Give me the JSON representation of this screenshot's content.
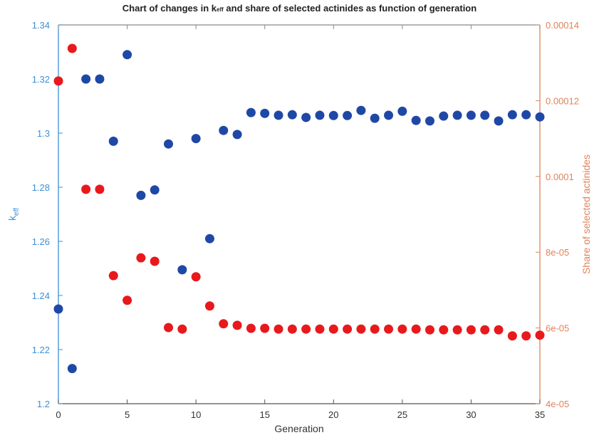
{
  "chart_data": {
    "type": "scatter",
    "title": "Chart of changes in k_eff and share of selected actinides as function of generation",
    "title_parts": {
      "pre": "Chart of changes in k",
      "sub": "eff",
      "post": " and share of selected actinides as function of generation"
    },
    "xlabel": "Generation",
    "ylabel_left": {
      "main": "k",
      "sub": "eff"
    },
    "ylabel_right": "Share of selected actinides",
    "xlim": [
      0,
      35
    ],
    "ylim_left": [
      1.2,
      1.34
    ],
    "ylim_right": [
      4e-05,
      0.00014
    ],
    "x_ticks": [
      0,
      5,
      10,
      15,
      20,
      25,
      30,
      35
    ],
    "y_ticks_left": [
      "1.2",
      "1.22",
      "1.24",
      "1.26",
      "1.28",
      "1.3",
      "1.32",
      "1.34"
    ],
    "y_ticks_left_values": [
      1.2,
      1.22,
      1.24,
      1.26,
      1.28,
      1.3,
      1.32,
      1.34
    ],
    "y_ticks_right": [
      "4e-05",
      "6e-05",
      "8e-05",
      "0.0001",
      "0.00012",
      "0.00014"
    ],
    "y_ticks_right_values": [
      4e-05,
      6e-05,
      8e-05,
      0.0001,
      0.00012,
      0.00014
    ],
    "grid": false,
    "legend": null,
    "x": [
      0,
      1,
      2,
      3,
      4,
      5,
      6,
      7,
      8,
      9,
      10,
      11,
      12,
      13,
      14,
      15,
      16,
      17,
      18,
      19,
      20,
      21,
      22,
      23,
      24,
      25,
      26,
      27,
      28,
      29,
      30,
      31,
      32,
      33,
      34,
      35
    ],
    "series": [
      {
        "name": "k_eff",
        "axis": "left",
        "color": "#1f48a6",
        "values": [
          1.235,
          1.213,
          1.32,
          1.32,
          1.297,
          1.329,
          1.277,
          1.279,
          1.296,
          1.2495,
          1.298,
          1.261,
          1.301,
          1.2995,
          1.3076,
          1.3073,
          1.3066,
          1.3068,
          1.3058,
          1.3066,
          1.3065,
          1.3065,
          1.3084,
          1.3055,
          1.3066,
          1.3081,
          1.3047,
          1.3045,
          1.3063,
          1.3066,
          1.3066,
          1.3066,
          1.3045,
          1.3068,
          1.3068,
          1.306
        ]
      },
      {
        "name": "Share of selected actinides",
        "axis": "right",
        "color": "#e8191c",
        "values": [
          0.0001252,
          0.0001338,
          9.66e-05,
          9.66e-05,
          7.38e-05,
          6.73e-05,
          7.85e-05,
          7.76e-05,
          6.01e-05,
          5.97e-05,
          7.35e-05,
          6.58e-05,
          6.11e-05,
          6.07e-05,
          5.99e-05,
          5.99e-05,
          5.97e-05,
          5.97e-05,
          5.97e-05,
          5.97e-05,
          5.97e-05,
          5.97e-05,
          5.97e-05,
          5.97e-05,
          5.97e-05,
          5.97e-05,
          5.97e-05,
          5.95e-05,
          5.95e-05,
          5.95e-05,
          5.95e-05,
          5.95e-05,
          5.95e-05,
          5.79e-05,
          5.79e-05,
          5.81e-05
        ]
      }
    ]
  },
  "colors": {
    "left_axis": "#3d8fd6",
    "right_axis": "#e0835a",
    "bottom_axis": "#555555",
    "blue_marker": "#1f48a6",
    "red_marker": "#e8191c"
  }
}
